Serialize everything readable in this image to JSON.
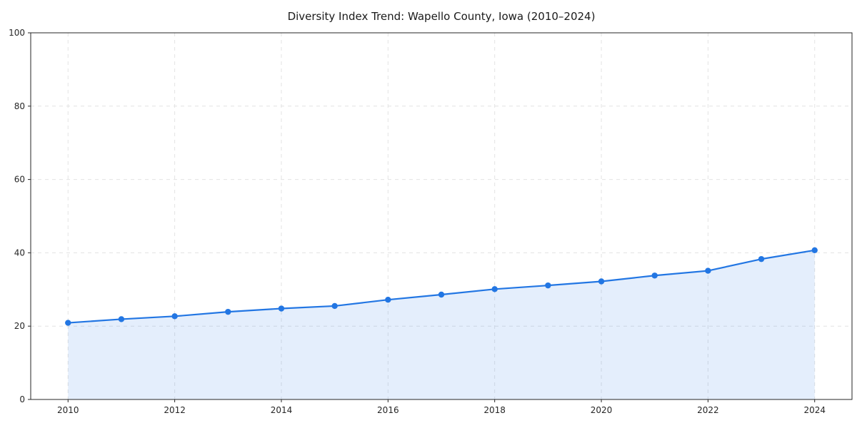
{
  "title": "Diversity Index Trend: Wapello County, Iowa (2010–2024)",
  "colors": {
    "line": "#2276e3",
    "marker": "#2276e3",
    "fill": "rgba(34, 118, 227, 0.12)",
    "grid": "#e3e3e3",
    "axis": "#262626",
    "tick_text": "#262626",
    "background": "#ffffff"
  },
  "chart_data": {
    "type": "area",
    "title": "Diversity Index Trend: Wapello County, Iowa (2010–2024)",
    "xlabel": "",
    "ylabel": "",
    "x": [
      2010,
      2011,
      2012,
      2013,
      2014,
      2015,
      2016,
      2017,
      2018,
      2019,
      2020,
      2021,
      2022,
      2023,
      2024
    ],
    "series": [
      {
        "name": "Diversity Index",
        "values": [
          20.9,
          21.9,
          22.7,
          23.9,
          24.8,
          25.5,
          27.2,
          28.6,
          30.1,
          31.1,
          32.2,
          33.8,
          35.1,
          38.3,
          40.7
        ]
      }
    ],
    "xlim": [
      2009.3,
      2024.7
    ],
    "ylim": [
      0,
      100
    ],
    "xticks": [
      2010,
      2012,
      2014,
      2016,
      2018,
      2020,
      2022,
      2024
    ],
    "yticks": [
      0,
      20,
      40,
      60,
      80,
      100
    ],
    "grid": true,
    "grid_style": "dashed",
    "legend": false,
    "marker": "circle",
    "frame": "box"
  }
}
